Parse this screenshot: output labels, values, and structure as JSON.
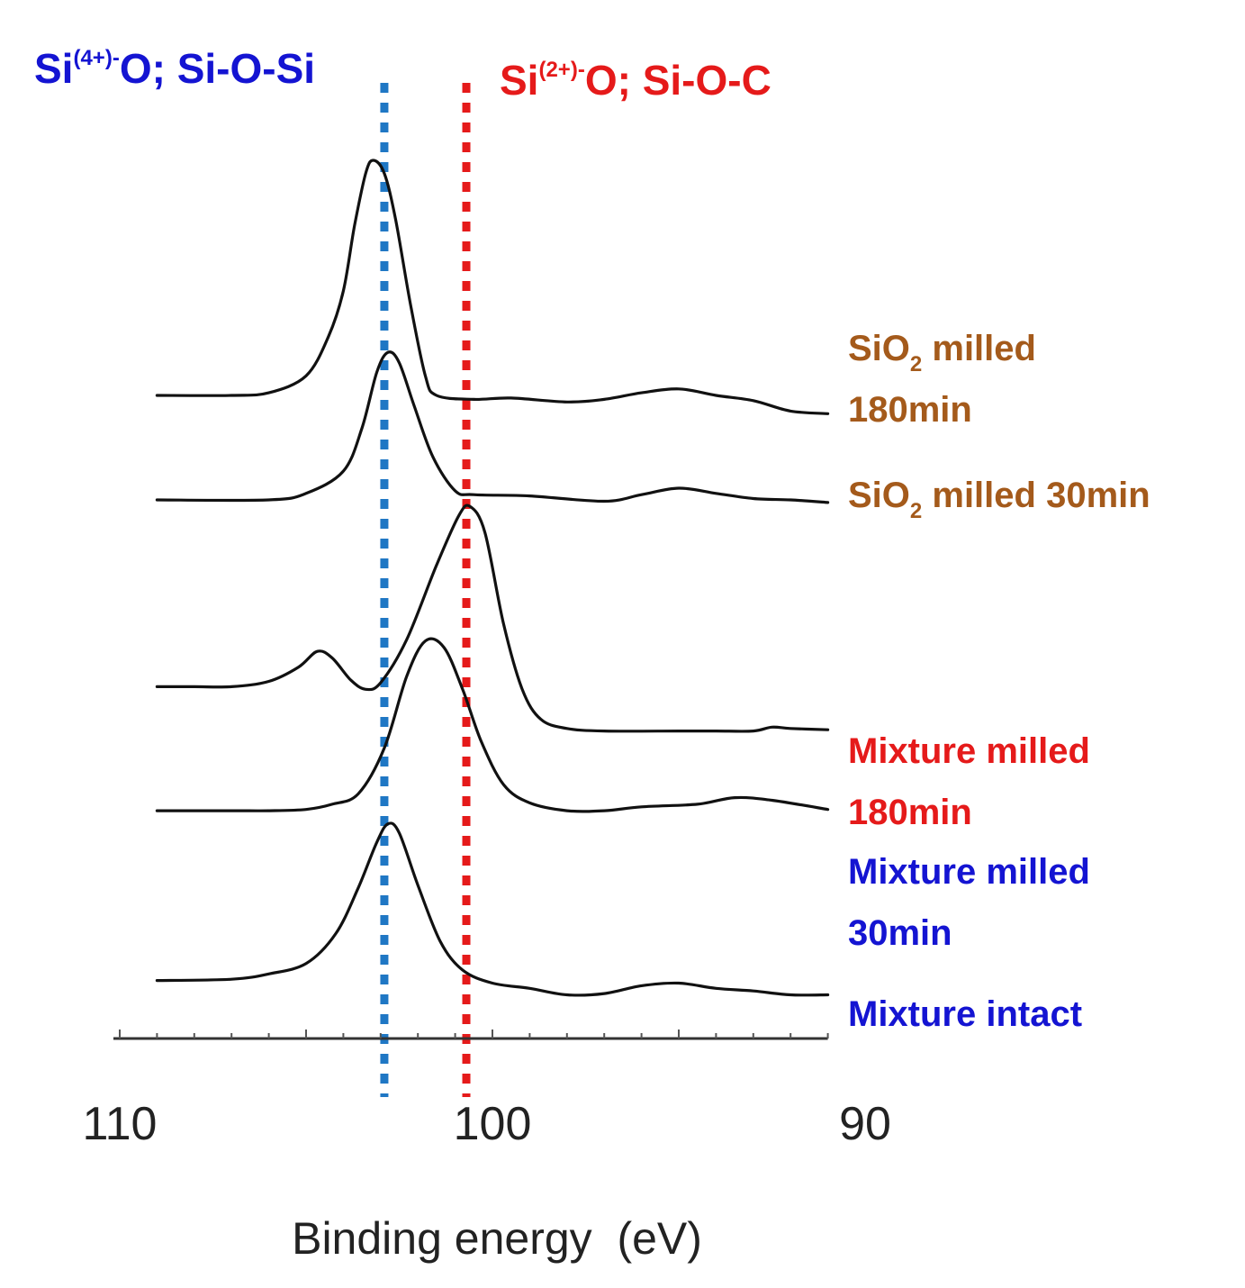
{
  "chart_data": {
    "type": "line",
    "xlabel": "Binding energy  (eV)",
    "x_ticks": [
      "110",
      "100",
      "90"
    ],
    "x_range": [
      110,
      91
    ],
    "x_reversed": true,
    "y_axis_shown": false,
    "grid": false,
    "series": [
      {
        "name_parts": [
          "SiO",
          "2",
          " milled",
          "180min"
        ],
        "color": "#a45a1b",
        "baseline_y": 0.8,
        "points": [
          [
            109,
            0.8
          ],
          [
            107,
            0.8
          ],
          [
            106,
            0.82
          ],
          [
            105,
            0.95
          ],
          [
            104.4,
            1.25
          ],
          [
            104,
            1.6
          ],
          [
            103.7,
            2.1
          ],
          [
            103.4,
            2.5
          ],
          [
            103.2,
            2.6
          ],
          [
            102.9,
            2.5
          ],
          [
            102.6,
            2.15
          ],
          [
            102.2,
            1.5
          ],
          [
            101.8,
            0.95
          ],
          [
            101.5,
            0.8
          ],
          [
            100.5,
            0.77
          ],
          [
            99.5,
            0.78
          ],
          [
            98,
            0.75
          ],
          [
            97,
            0.77
          ],
          [
            96,
            0.82
          ],
          [
            95,
            0.85
          ],
          [
            94,
            0.8
          ],
          [
            93,
            0.76
          ],
          [
            92,
            0.68
          ],
          [
            91,
            0.66
          ]
        ]
      },
      {
        "name_parts": [
          "SiO",
          "2",
          " milled 30min"
        ],
        "color": "#a45a1b",
        "baseline_y": 0.0,
        "points": [
          [
            109,
            0.0
          ],
          [
            106,
            0.0
          ],
          [
            105,
            0.05
          ],
          [
            104,
            0.22
          ],
          [
            103.5,
            0.55
          ],
          [
            103.1,
            0.98
          ],
          [
            102.8,
            1.13
          ],
          [
            102.5,
            1.05
          ],
          [
            102.1,
            0.72
          ],
          [
            101.6,
            0.33
          ],
          [
            101,
            0.07
          ],
          [
            100.5,
            0.04
          ],
          [
            99,
            0.03
          ],
          [
            97,
            -0.01
          ],
          [
            96,
            0.04
          ],
          [
            95,
            0.09
          ],
          [
            94,
            0.05
          ],
          [
            93,
            0.01
          ],
          [
            92,
            0.0
          ],
          [
            91,
            -0.02
          ]
        ]
      },
      {
        "name_parts": [
          "Mixture milled",
          "180min"
        ],
        "color": "#e51a1a",
        "baseline_y": -1.43,
        "points": [
          [
            109,
            -1.43
          ],
          [
            108,
            -1.43
          ],
          [
            107,
            -1.43
          ],
          [
            106,
            -1.39
          ],
          [
            105.2,
            -1.28
          ],
          [
            104.7,
            -1.16
          ],
          [
            104.3,
            -1.21
          ],
          [
            103.8,
            -1.38
          ],
          [
            103.4,
            -1.45
          ],
          [
            103,
            -1.4
          ],
          [
            102.3,
            -1.07
          ],
          [
            101.5,
            -0.5
          ],
          [
            100.9,
            -0.12
          ],
          [
            100.6,
            -0.05
          ],
          [
            100.2,
            -0.25
          ],
          [
            99.7,
            -0.95
          ],
          [
            99.2,
            -1.45
          ],
          [
            98.7,
            -1.68
          ],
          [
            98,
            -1.75
          ],
          [
            97,
            -1.77
          ],
          [
            95,
            -1.77
          ],
          [
            94,
            -1.77
          ],
          [
            93,
            -1.77
          ],
          [
            92.5,
            -1.74
          ],
          [
            92,
            -1.75
          ],
          [
            91,
            -1.76
          ]
        ]
      },
      {
        "name_parts": [
          "Mixture milled",
          "30min"
        ],
        "color": "#1414d2",
        "baseline_y": -2.38,
        "points": [
          [
            109,
            -2.38
          ],
          [
            107,
            -2.38
          ],
          [
            106,
            -2.38
          ],
          [
            105,
            -2.37
          ],
          [
            104.3,
            -2.33
          ],
          [
            103.6,
            -2.25
          ],
          [
            102.9,
            -1.9
          ],
          [
            102.3,
            -1.35
          ],
          [
            101.8,
            -1.08
          ],
          [
            101.3,
            -1.13
          ],
          [
            100.8,
            -1.45
          ],
          [
            100.3,
            -1.85
          ],
          [
            99.7,
            -2.18
          ],
          [
            99,
            -2.32
          ],
          [
            98,
            -2.38
          ],
          [
            97,
            -2.38
          ],
          [
            96,
            -2.35
          ],
          [
            94.5,
            -2.33
          ],
          [
            93.5,
            -2.28
          ],
          [
            92.5,
            -2.3
          ],
          [
            91,
            -2.37
          ]
        ]
      },
      {
        "name_parts": [
          "Mixture intact"
        ],
        "color": "#1414d2",
        "baseline_y": -3.68,
        "points": [
          [
            109,
            -3.68
          ],
          [
            107,
            -3.67
          ],
          [
            106,
            -3.63
          ],
          [
            105,
            -3.55
          ],
          [
            104.2,
            -3.32
          ],
          [
            103.6,
            -2.97
          ],
          [
            103.1,
            -2.62
          ],
          [
            102.8,
            -2.48
          ],
          [
            102.5,
            -2.55
          ],
          [
            102,
            -2.95
          ],
          [
            101.4,
            -3.38
          ],
          [
            100.8,
            -3.6
          ],
          [
            100,
            -3.7
          ],
          [
            99,
            -3.74
          ],
          [
            98,
            -3.79
          ],
          [
            97,
            -3.78
          ],
          [
            96,
            -3.72
          ],
          [
            95,
            -3.7
          ],
          [
            94,
            -3.74
          ],
          [
            93,
            -3.76
          ],
          [
            92,
            -3.79
          ],
          [
            91,
            -3.79
          ]
        ]
      }
    ],
    "reference_lines": [
      {
        "x": 102.9,
        "color": "#1f77c4",
        "label_main": "Si",
        "label_sup": "(4+)-",
        "label_rest": "O; Si-O-Si",
        "label_color": "#1414d2"
      },
      {
        "x": 100.7,
        "color": "#e51a1a",
        "label_main": "Si",
        "label_sup": "(2+)-",
        "label_rest": "O; Si-O-C",
        "label_color": "#e51a1a"
      }
    ]
  }
}
